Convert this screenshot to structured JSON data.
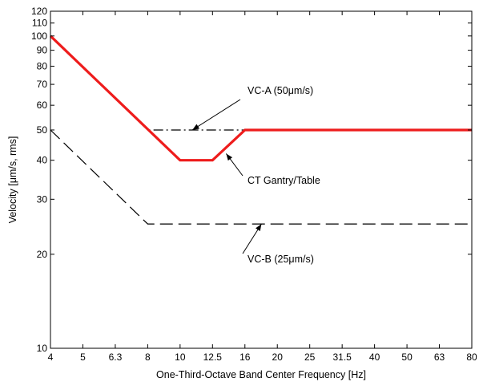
{
  "chart_data": {
    "type": "line",
    "xlabel": "One-Third-Octave Band Center Frequency [Hz]",
    "ylabel": "Velocity [μm/s, rms]",
    "x_scale": "categorical one-third-octave bands",
    "y_scale": "log",
    "ylim": [
      10,
      120
    ],
    "grid": false,
    "legend": "none",
    "categories": [
      "4",
      "5",
      "6.3",
      "8",
      "10",
      "12.5",
      "16",
      "20",
      "25",
      "31.5",
      "40",
      "50",
      "63",
      "80"
    ],
    "y_ticks": [
      10,
      20,
      30,
      40,
      50,
      60,
      70,
      80,
      90,
      100,
      110,
      120
    ],
    "series": [
      {
        "style": "dash-dot",
        "color": "#000000",
        "points": [
          [
            4,
            100
          ],
          [
            8,
            50
          ],
          [
            80,
            50
          ]
        ]
      },
      {
        "style": "dashed",
        "color": "#000000",
        "points": [
          [
            4,
            50
          ],
          [
            8,
            25
          ],
          [
            80,
            25
          ]
        ]
      },
      {
        "style": "solid-thick",
        "color": "#ee1c1c",
        "points": [
          [
            4,
            100
          ],
          [
            10,
            40
          ],
          [
            12.5,
            40
          ],
          [
            16,
            50
          ],
          [
            80,
            50
          ]
        ]
      }
    ],
    "annotations": [
      {
        "text": "VC-A (50μm/s)",
        "arrow_to": [
          11,
          50
        ]
      },
      {
        "text": "CT Gantry/Table",
        "arrow_to": [
          14,
          42
        ]
      },
      {
        "text": "VC-B (25μm/s)",
        "arrow_to": [
          18,
          25
        ]
      }
    ]
  }
}
